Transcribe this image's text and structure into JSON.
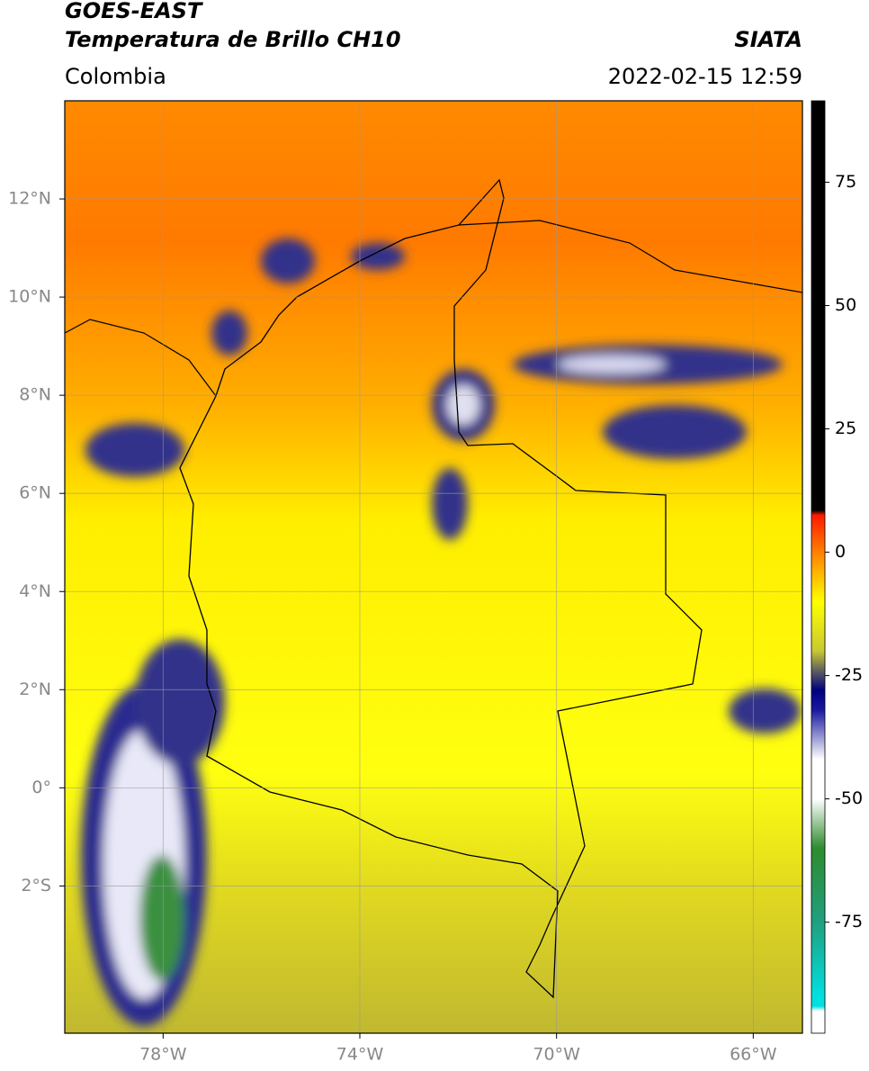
{
  "header": {
    "title": "GOES-EAST",
    "subtitle": "Temperatura de Brillo CH10",
    "source": "SIATA",
    "region": "Colombia",
    "datetime": "2022-02-15 12:59"
  },
  "map": {
    "xlim": [
      -80,
      -65
    ],
    "ylim": [
      -5,
      14
    ],
    "xticks": [
      {
        "value": -78,
        "label": "78°W"
      },
      {
        "value": -74,
        "label": "74°W"
      },
      {
        "value": -70,
        "label": "70°W"
      },
      {
        "value": -66,
        "label": "66°W"
      }
    ],
    "yticks": [
      {
        "value": 12,
        "label": "12°N"
      },
      {
        "value": 10,
        "label": "10°N"
      },
      {
        "value": 8,
        "label": "8°N"
      },
      {
        "value": 6,
        "label": "6°N"
      },
      {
        "value": 4,
        "label": "4°N"
      },
      {
        "value": 2,
        "label": "2°N"
      },
      {
        "value": 0,
        "label": "0°"
      },
      {
        "value": -2,
        "label": "2°S"
      }
    ],
    "grid": true
  },
  "colorbar": {
    "lim": [
      -97.5,
      91.5
    ],
    "ticks": [
      75,
      50,
      25,
      0,
      -25,
      -50,
      -75
    ],
    "colors": [
      {
        "value": 91.5,
        "color": "#000000"
      },
      {
        "value": 8.5,
        "color": "#000000"
      },
      {
        "value": 7.5,
        "color": "#ff1a00"
      },
      {
        "value": 0,
        "color": "#ff8000"
      },
      {
        "value": -10,
        "color": "#ffff00"
      },
      {
        "value": -20,
        "color": "#c8c832"
      },
      {
        "value": -24,
        "color": "#606060"
      },
      {
        "value": -28,
        "color": "#000080"
      },
      {
        "value": -32,
        "color": "#1a1aa0"
      },
      {
        "value": -42,
        "color": "#ffffff"
      },
      {
        "value": -50,
        "color": "#ffffff"
      },
      {
        "value": -60,
        "color": "#2e8b2e"
      },
      {
        "value": -75,
        "color": "#20a080"
      },
      {
        "value": -90,
        "color": "#00e0e0"
      },
      {
        "value": -92,
        "color": "#00e0e0"
      },
      {
        "value": -93,
        "color": "#ffffff"
      },
      {
        "value": -97.5,
        "color": "#ffffff"
      }
    ]
  }
}
